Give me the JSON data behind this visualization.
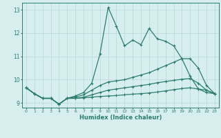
{
  "title": "",
  "xlabel": "Humidex (Indice chaleur)",
  "bg_color": "#d6eeee",
  "line_color": "#2a7d6e",
  "grid_color": "#b8d8d8",
  "xlim": [
    -0.5,
    23.5
  ],
  "ylim": [
    8.8,
    13.3
  ],
  "xticks": [
    0,
    1,
    2,
    3,
    4,
    5,
    6,
    7,
    8,
    9,
    10,
    11,
    12,
    13,
    14,
    15,
    16,
    17,
    18,
    19,
    20,
    21,
    22,
    23
  ],
  "yticks": [
    9,
    10,
    11,
    12,
    13
  ],
  "line1_x": [
    0,
    1,
    2,
    3,
    4,
    5,
    6,
    7,
    8,
    9,
    10,
    11,
    12,
    13,
    14,
    15,
    16,
    17,
    18,
    19,
    20,
    21,
    22,
    23
  ],
  "line1_y": [
    9.65,
    9.4,
    9.2,
    9.2,
    8.95,
    9.2,
    9.3,
    9.45,
    9.85,
    11.1,
    13.1,
    12.3,
    11.45,
    11.7,
    11.5,
    12.2,
    11.75,
    11.65,
    11.45,
    10.9,
    10.15,
    9.6,
    9.55,
    9.4
  ],
  "line2_x": [
    0,
    1,
    2,
    3,
    4,
    5,
    6,
    7,
    8,
    9,
    10,
    11,
    12,
    13,
    14,
    15,
    16,
    17,
    18,
    19,
    20,
    21,
    22,
    23
  ],
  "line2_y": [
    9.65,
    9.4,
    9.2,
    9.2,
    8.95,
    9.2,
    9.25,
    9.35,
    9.55,
    9.75,
    9.9,
    9.95,
    10.0,
    10.1,
    10.2,
    10.3,
    10.45,
    10.6,
    10.75,
    10.9,
    10.9,
    10.5,
    9.75,
    9.4
  ],
  "line3_x": [
    0,
    1,
    2,
    3,
    4,
    5,
    6,
    7,
    8,
    9,
    10,
    11,
    12,
    13,
    14,
    15,
    16,
    17,
    18,
    19,
    20,
    21,
    22,
    23
  ],
  "line3_y": [
    9.65,
    9.4,
    9.2,
    9.2,
    8.95,
    9.2,
    9.2,
    9.25,
    9.35,
    9.45,
    9.55,
    9.6,
    9.65,
    9.7,
    9.75,
    9.8,
    9.87,
    9.92,
    9.97,
    10.02,
    10.05,
    9.85,
    9.55,
    9.4
  ],
  "line4_x": [
    0,
    1,
    2,
    3,
    4,
    5,
    6,
    7,
    8,
    9,
    10,
    11,
    12,
    13,
    14,
    15,
    16,
    17,
    18,
    19,
    20,
    21,
    22,
    23
  ],
  "line4_y": [
    9.65,
    9.4,
    9.2,
    9.2,
    8.95,
    9.2,
    9.2,
    9.22,
    9.25,
    9.28,
    9.3,
    9.32,
    9.35,
    9.38,
    9.4,
    9.43,
    9.47,
    9.52,
    9.57,
    9.62,
    9.65,
    9.6,
    9.45,
    9.4
  ]
}
